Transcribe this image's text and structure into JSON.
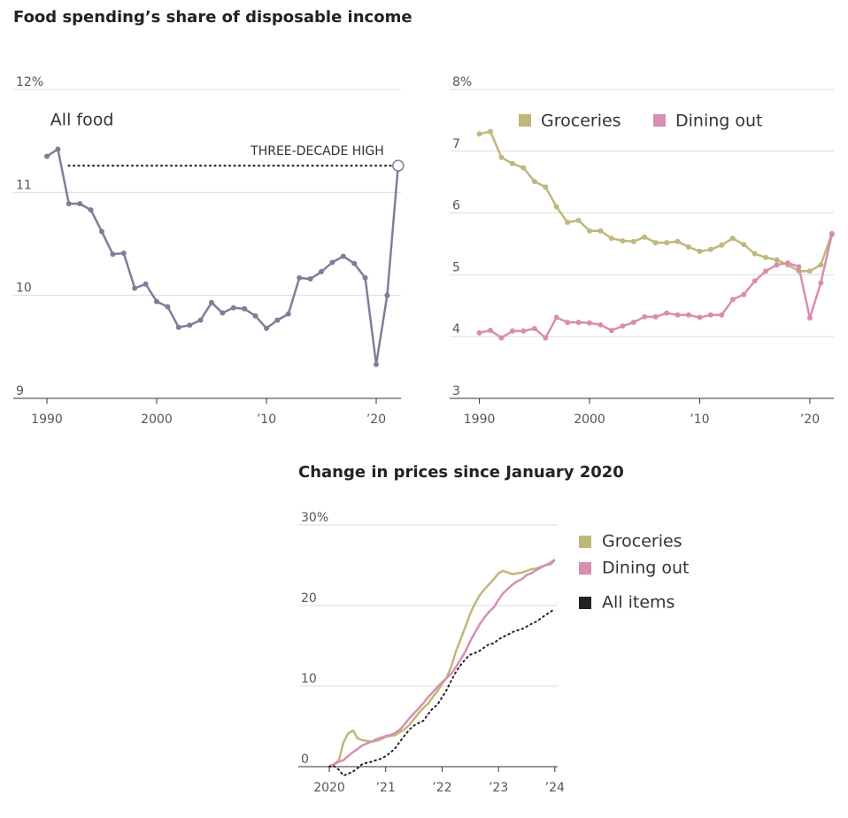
{
  "chart_data": [
    {
      "type": "line",
      "title": "Food spending’s share of disposable income",
      "legend": "inline",
      "x": [
        1990,
        1991,
        1992,
        1993,
        1994,
        1995,
        1996,
        1997,
        1998,
        1999,
        2000,
        2001,
        2002,
        2003,
        2004,
        2005,
        2006,
        2007,
        2008,
        2009,
        2010,
        2011,
        2012,
        2013,
        2014,
        2015,
        2016,
        2017,
        2018,
        2019,
        2020,
        2021,
        2022
      ],
      "series": [
        {
          "name": "All food",
          "color": "#7b8099",
          "markers": true,
          "values": [
            11.35,
            11.42,
            10.89,
            10.89,
            10.83,
            10.62,
            10.4,
            10.41,
            10.07,
            10.11,
            9.94,
            9.89,
            9.69,
            9.71,
            9.76,
            9.93,
            9.83,
            9.88,
            9.87,
            9.8,
            9.68,
            9.76,
            9.82,
            10.17,
            10.16,
            10.23,
            10.32,
            10.38,
            10.31,
            10.17,
            9.33,
            10.0,
            11.26
          ]
        }
      ],
      "annotation": "THREE-DECADE HIGH",
      "xlim": [
        1987,
        2022.5
      ],
      "xticks": [
        1990,
        2000,
        {
          "value": 2010,
          "label": "’10"
        },
        {
          "value": 2020,
          "label": "’20"
        }
      ],
      "ylim": [
        9,
        12
      ],
      "yticks": [
        {
          "value": 12,
          "label": "12%"
        },
        11,
        10,
        9
      ],
      "grid": true
    },
    {
      "type": "line",
      "legend": "top",
      "x": [
        1990,
        1991,
        1992,
        1993,
        1994,
        1995,
        1996,
        1997,
        1998,
        1999,
        2000,
        2001,
        2002,
        2003,
        2004,
        2005,
        2006,
        2007,
        2008,
        2009,
        2010,
        2011,
        2012,
        2013,
        2014,
        2015,
        2016,
        2017,
        2018,
        2019,
        2020,
        2021,
        2022
      ],
      "series": [
        {
          "name": "Groceries",
          "color": "#bfb87a",
          "markers": true,
          "values": [
            7.28,
            7.32,
            6.9,
            6.8,
            6.73,
            6.51,
            6.42,
            6.1,
            5.85,
            5.88,
            5.71,
            5.71,
            5.59,
            5.55,
            5.54,
            5.61,
            5.52,
            5.52,
            5.54,
            5.45,
            5.38,
            5.41,
            5.48,
            5.59,
            5.49,
            5.34,
            5.28,
            5.24,
            5.16,
            5.06,
            5.06,
            5.16,
            5.67
          ]
        },
        {
          "name": "Dining out",
          "color": "#d98db1",
          "markers": true,
          "values": [
            4.06,
            4.1,
            3.98,
            4.09,
            4.09,
            4.13,
            3.98,
            4.31,
            4.23,
            4.23,
            4.22,
            4.19,
            4.1,
            4.17,
            4.23,
            4.32,
            4.32,
            4.38,
            4.35,
            4.35,
            4.31,
            4.35,
            4.35,
            4.6,
            4.68,
            4.9,
            5.06,
            5.16,
            5.19,
            5.13,
            4.3,
            4.87,
            5.65
          ]
        }
      ],
      "xlim": [
        1987.3,
        2022.5
      ],
      "xticks": [
        1990,
        2000,
        {
          "value": 2010,
          "label": "’10"
        },
        {
          "value": 2020,
          "label": "’20"
        }
      ],
      "ylim": [
        3,
        8
      ],
      "yticks": [
        {
          "value": 8,
          "label": "8%"
        },
        7,
        6,
        5,
        4,
        3
      ],
      "grid": true
    },
    {
      "type": "line",
      "title": "Change in prices since January 2020",
      "legend": "right",
      "x": [
        2020,
        2020.08,
        2020.17,
        2020.25,
        2020.33,
        2020.42,
        2020.5,
        2020.58,
        2020.67,
        2020.75,
        2020.83,
        2020.92,
        2021,
        2021.08,
        2021.17,
        2021.25,
        2021.33,
        2021.42,
        2021.5,
        2021.58,
        2021.67,
        2021.75,
        2021.83,
        2021.92,
        2022,
        2022.08,
        2022.17,
        2022.25,
        2022.33,
        2022.42,
        2022.5,
        2022.58,
        2022.67,
        2022.75,
        2022.83,
        2022.92,
        2023,
        2023.08,
        2023.17,
        2023.25,
        2023.33,
        2023.42,
        2023.5,
        2023.58,
        2023.67,
        2023.75,
        2023.83,
        2023.92,
        2024
      ],
      "series": [
        {
          "name": "Groceries",
          "color": "#bfb87a",
          "values": [
            0,
            0.3,
            0.8,
            3.0,
            4.1,
            4.5,
            3.5,
            3.3,
            3.2,
            3.1,
            3.2,
            3.4,
            3.7,
            3.8,
            3.9,
            4.3,
            4.6,
            5.2,
            5.9,
            6.6,
            7.3,
            7.8,
            8.6,
            9.4,
            10.3,
            11.0,
            12.6,
            14.4,
            15.8,
            17.5,
            19.0,
            20.2,
            21.3,
            22.0,
            22.6,
            23.3,
            24.0,
            24.3,
            24.1,
            23.9,
            24.0,
            24.1,
            24.3,
            24.5,
            24.6,
            24.8,
            25.0,
            25.1,
            25.6
          ]
        },
        {
          "name": "Dining out",
          "color": "#d98db1",
          "values": [
            0,
            0.3,
            0.6,
            0.8,
            1.3,
            1.8,
            2.2,
            2.6,
            2.9,
            3.1,
            3.4,
            3.6,
            3.8,
            3.9,
            4.2,
            4.6,
            5.2,
            6.0,
            6.6,
            7.2,
            7.9,
            8.6,
            9.2,
            9.9,
            10.5,
            11.0,
            11.6,
            12.4,
            13.3,
            14.4,
            15.6,
            16.6,
            17.7,
            18.5,
            19.2,
            19.8,
            20.7,
            21.5,
            22.1,
            22.6,
            23.0,
            23.3,
            23.8,
            24.0,
            24.4,
            24.7,
            25.0,
            25.3,
            25.7
          ]
        },
        {
          "name": "All items",
          "color": "#222222",
          "dash": "dotted",
          "values": [
            0,
            0.1,
            -0.4,
            -1.1,
            -0.9,
            -0.6,
            -0.2,
            0.3,
            0.5,
            0.6,
            0.8,
            1.0,
            1.3,
            1.7,
            2.3,
            3.1,
            3.8,
            4.6,
            5.1,
            5.4,
            5.7,
            6.5,
            7.2,
            7.7,
            8.6,
            9.5,
            10.8,
            11.8,
            12.6,
            13.4,
            13.9,
            14.1,
            14.4,
            14.8,
            15.2,
            15.3,
            15.8,
            16.1,
            16.4,
            16.7,
            16.9,
            17.1,
            17.4,
            17.7,
            18.0,
            18.4,
            18.8,
            19.2,
            19.6
          ]
        }
      ],
      "xlim": [
        2019.45,
        2024.05
      ],
      "xticks": [
        2020,
        {
          "value": 2021,
          "label": "’21"
        },
        {
          "value": 2022,
          "label": "’22"
        },
        {
          "value": 2023,
          "label": "’23"
        },
        {
          "value": 2024,
          "label": "’24"
        }
      ],
      "ylim": [
        0,
        30
      ],
      "yticks": [
        {
          "value": 30,
          "label": "30%"
        },
        20,
        10,
        0
      ],
      "grid": true
    }
  ]
}
